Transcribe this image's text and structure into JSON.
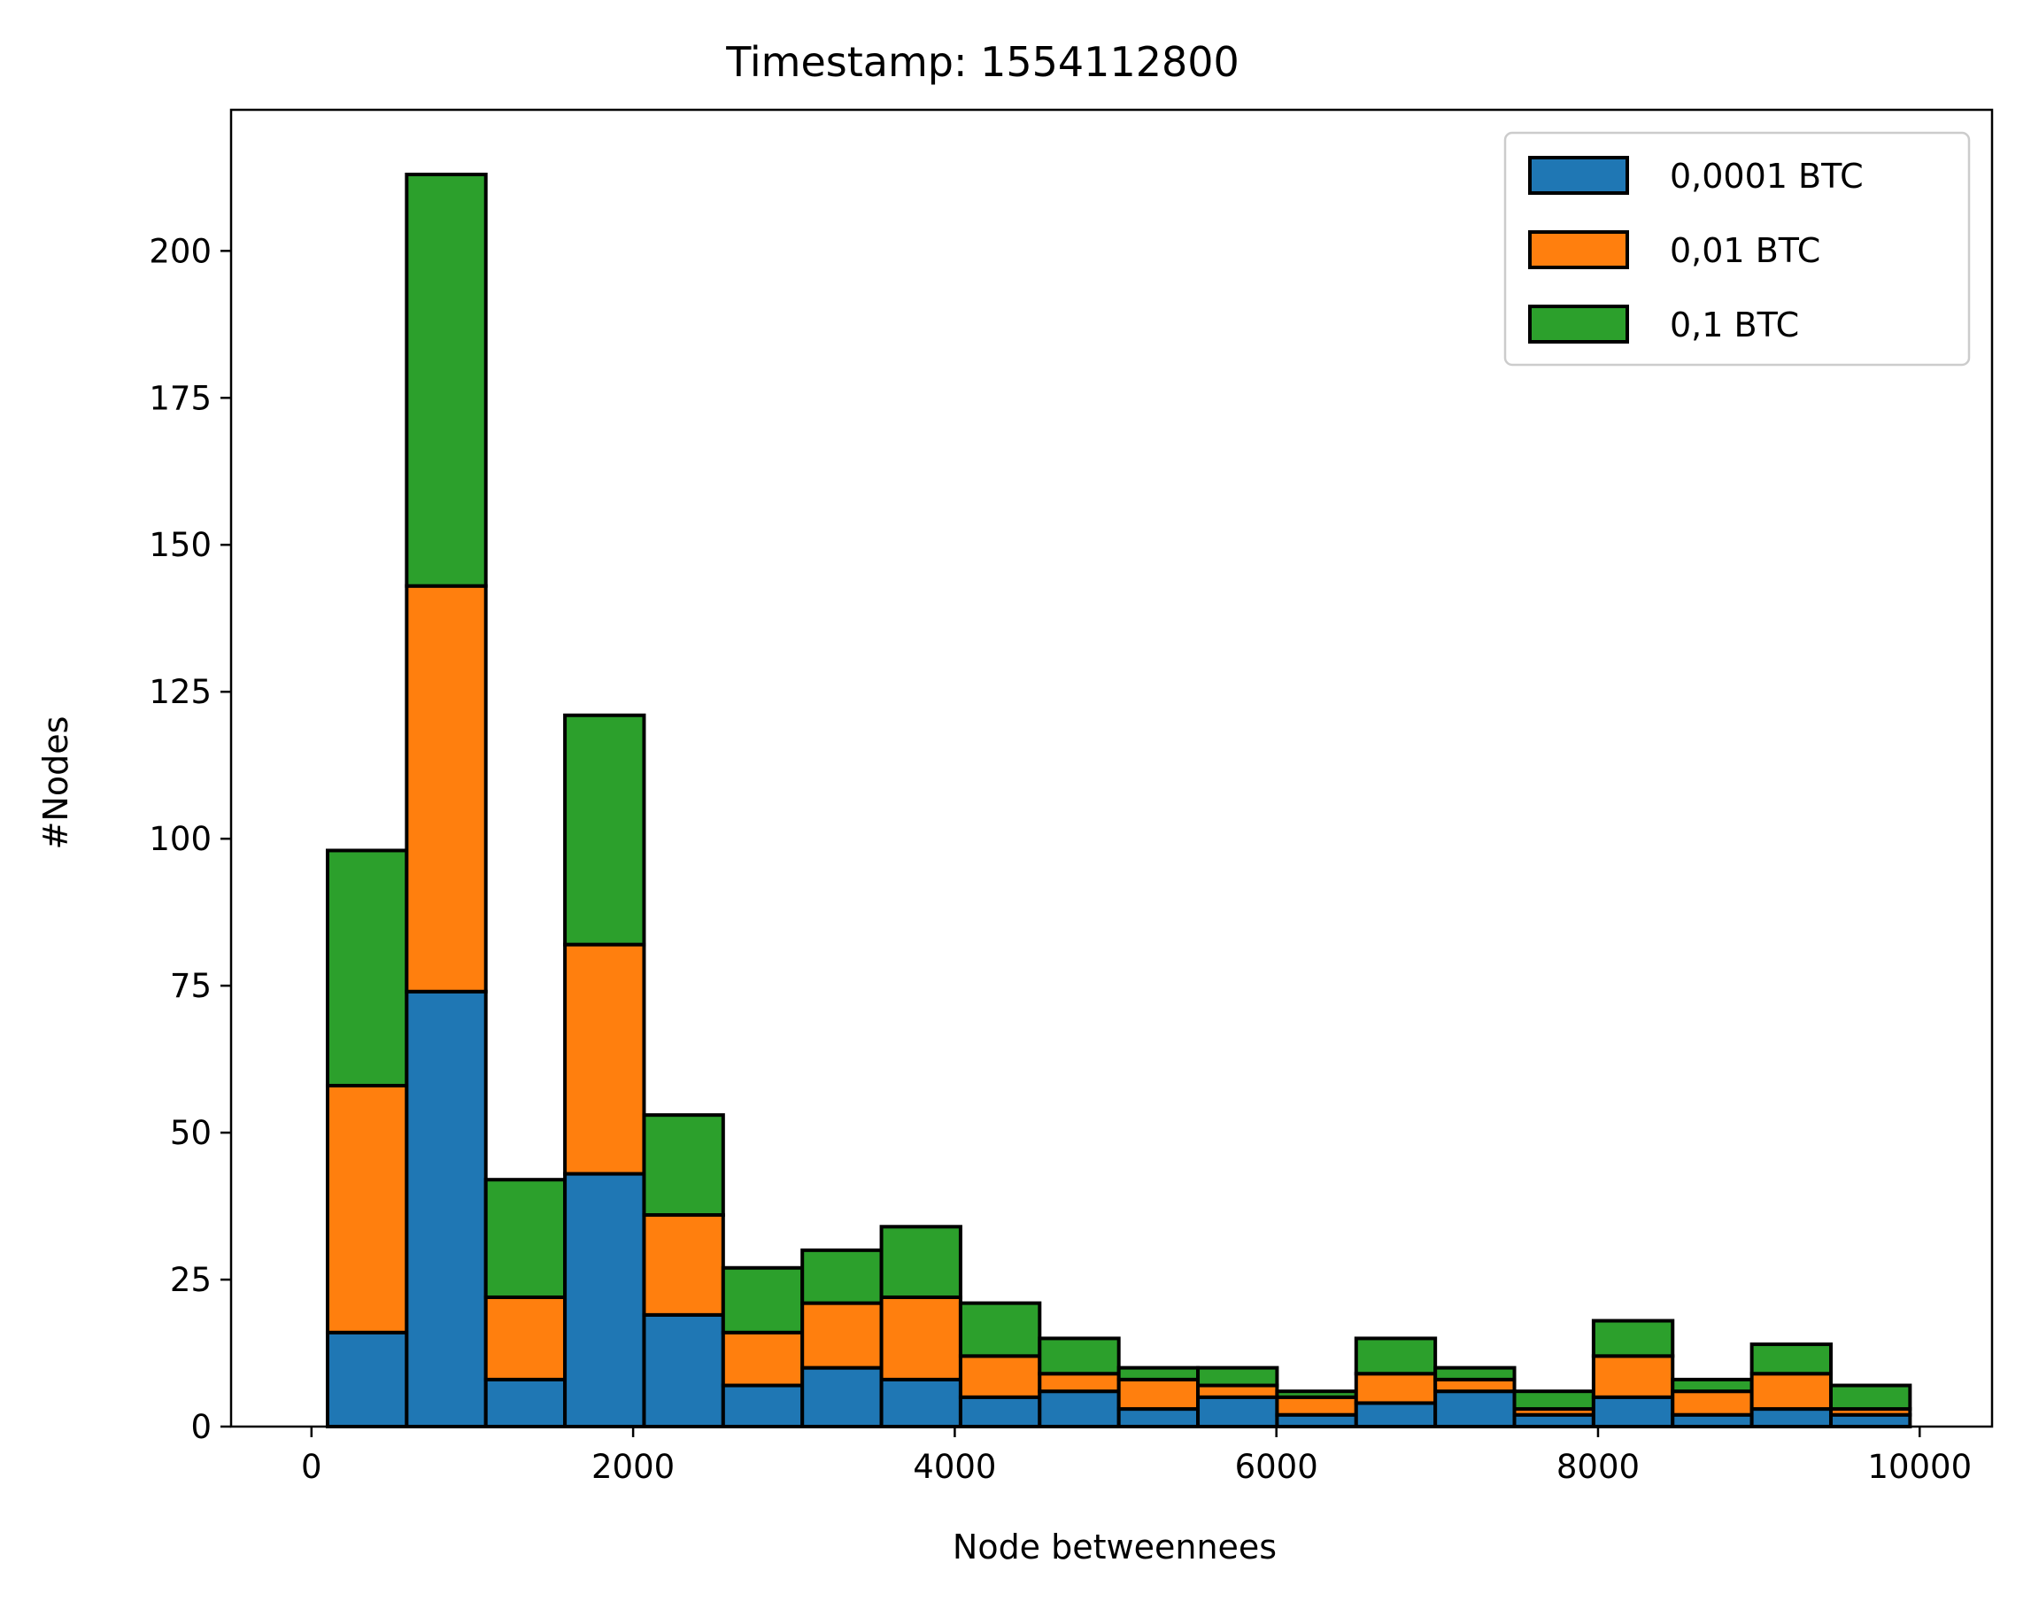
{
  "chart_data": {
    "type": "bar",
    "subtype": "stacked-histogram",
    "title": "Timestamp: 1554112800",
    "xlabel": "Node betweennees",
    "ylabel": "#Nodes",
    "xlim": [
      -500,
      10450
    ],
    "ylim": [
      0,
      224
    ],
    "xticks": [
      0,
      2000,
      4000,
      6000,
      8000,
      10000
    ],
    "yticks": [
      0,
      25,
      50,
      75,
      100,
      125,
      150,
      175,
      200
    ],
    "grid": false,
    "legend_position": "top-right",
    "bin_start": 100,
    "bin_width": 492,
    "series": [
      {
        "name": "0,0001 BTC",
        "color": "#1f77b4",
        "values": [
          16,
          74,
          8,
          43,
          19,
          7,
          10,
          8,
          5,
          6,
          3,
          5,
          2,
          4,
          6,
          2,
          5,
          2,
          3,
          2
        ]
      },
      {
        "name": "0,01 BTC",
        "color": "#ff7f0e",
        "values": [
          42,
          69,
          14,
          39,
          17,
          9,
          11,
          14,
          7,
          3,
          5,
          2,
          3,
          5,
          2,
          1,
          7,
          4,
          6,
          1
        ]
      },
      {
        "name": "0,1 BTC",
        "color": "#2ca02c",
        "values": [
          40,
          70,
          20,
          39,
          17,
          11,
          9,
          12,
          9,
          6,
          2,
          3,
          1,
          6,
          2,
          3,
          6,
          2,
          5,
          4
        ]
      }
    ]
  }
}
